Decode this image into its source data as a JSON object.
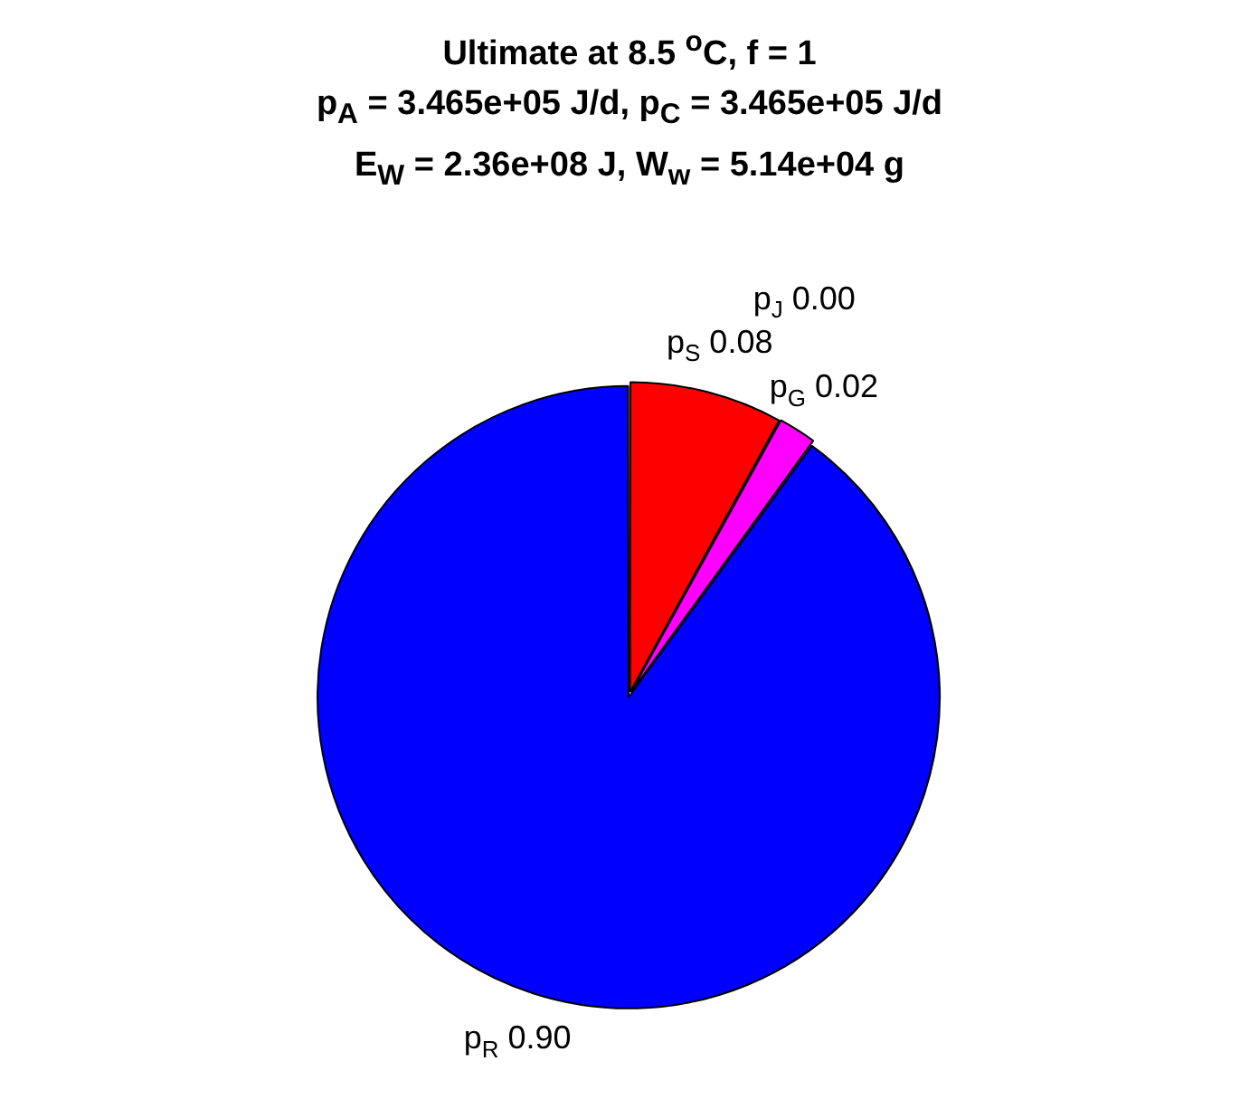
{
  "chart_data": {
    "type": "pie",
    "title": "Ultimate at 8.5 $^{o}$C, f = 1",
    "subtitle": "p$_{A}$ = 3.465e+05 J/d, p$_{C}$ = 3.465e+05 J/d\nE$_{W}$ = 2.36e+08 J, W$_{w}$ = 5.14e+04 g",
    "categories": [
      "p$_{S}$",
      "p$_{J}$",
      "p$_{G}$",
      "p$_{R}$"
    ],
    "values": [
      0.08,
      0.0,
      0.02,
      0.9
    ],
    "value_labels": [
      "0.08",
      "0.00",
      "0.02",
      "0.90"
    ],
    "colors": [
      "#ff0000",
      null,
      "#ff00ff",
      "#0000ff"
    ],
    "legend": false
  }
}
